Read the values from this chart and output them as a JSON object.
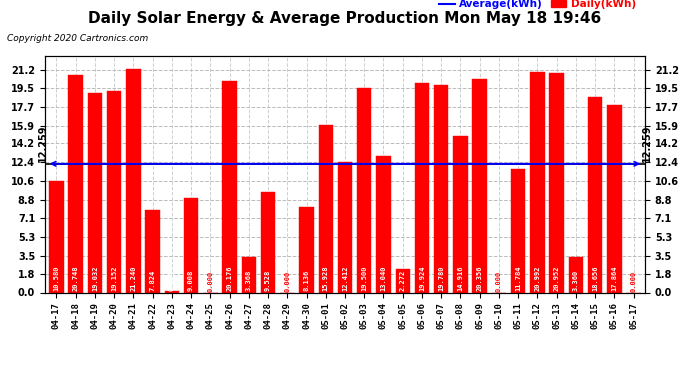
{
  "title": "Daily Solar Energy & Average Production Mon May 18 19:46",
  "copyright": "Copyright 2020 Cartronics.com",
  "legend_average": "Average(kWh)",
  "legend_daily": "Daily(kWh)",
  "average_value": 12.259,
  "categories": [
    "04-17",
    "04-18",
    "04-19",
    "04-20",
    "04-21",
    "04-22",
    "04-23",
    "04-24",
    "04-25",
    "04-26",
    "04-27",
    "04-28",
    "04-29",
    "04-30",
    "05-01",
    "05-02",
    "05-03",
    "05-04",
    "05-05",
    "05-06",
    "05-07",
    "05-08",
    "05-09",
    "05-10",
    "05-11",
    "05-12",
    "05-13",
    "05-14",
    "05-15",
    "05-16",
    "05-17"
  ],
  "values": [
    10.58,
    20.748,
    19.032,
    19.152,
    21.24,
    7.824,
    0.104,
    9.008,
    0.0,
    20.176,
    3.368,
    9.528,
    0.0,
    8.136,
    15.928,
    12.412,
    19.5,
    13.04,
    2.272,
    19.924,
    19.78,
    14.916,
    20.356,
    0.0,
    11.784,
    20.992,
    20.952,
    3.36,
    18.656,
    17.864,
    0.0
  ],
  "bar_color": "#ff0000",
  "avg_line_color": "#0000ff",
  "grid_color": "#bbbbbb",
  "background_color": "#ffffff",
  "title_fontsize": 11,
  "yticks": [
    0.0,
    1.8,
    3.5,
    5.3,
    7.1,
    8.8,
    10.6,
    12.4,
    14.2,
    15.9,
    17.7,
    19.5,
    21.2
  ],
  "ylim": [
    0.0,
    22.5
  ]
}
